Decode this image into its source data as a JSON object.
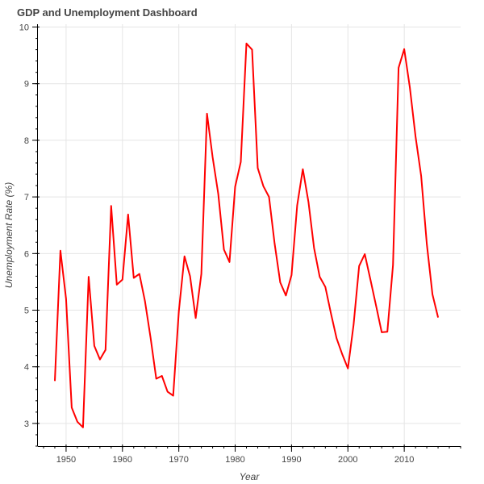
{
  "chart_data": {
    "type": "line",
    "title": "GDP and Unemployment Dashboard",
    "xlabel": "Year",
    "ylabel": "Unemployment Rate (%)",
    "xlim": [
      1945,
      2020
    ],
    "ylim": [
      2.6,
      10.05
    ],
    "x_ticks": [
      1950,
      1960,
      1970,
      1980,
      1990,
      2000,
      2010
    ],
    "y_ticks": [
      3,
      4,
      5,
      6,
      7,
      8,
      9,
      10
    ],
    "x_minor_step": 2,
    "y_minor_step": 0.2,
    "grid": true,
    "legend": "none",
    "series": [
      {
        "color": "#ff0000",
        "x": [
          1948,
          1949,
          1950,
          1951,
          1952,
          1953,
          1954,
          1955,
          1956,
          1957,
          1958,
          1959,
          1960,
          1961,
          1962,
          1963,
          1964,
          1965,
          1966,
          1967,
          1968,
          1969,
          1970,
          1971,
          1972,
          1973,
          1974,
          1975,
          1976,
          1977,
          1978,
          1979,
          1980,
          1981,
          1982,
          1983,
          1984,
          1985,
          1986,
          1987,
          1988,
          1989,
          1990,
          1991,
          1992,
          1993,
          1994,
          1995,
          1996,
          1997,
          1998,
          1999,
          2000,
          2001,
          2002,
          2003,
          2004,
          2005,
          2006,
          2007,
          2008,
          2009,
          2010,
          2011,
          2012,
          2013,
          2014,
          2015,
          2016
        ],
        "values": [
          3.75,
          6.05,
          5.2,
          3.28,
          3.03,
          2.93,
          5.59,
          4.37,
          4.13,
          4.3,
          6.84,
          5.45,
          5.54,
          6.69,
          5.57,
          5.64,
          5.16,
          4.51,
          3.79,
          3.84,
          3.56,
          3.49,
          4.98,
          5.95,
          5.6,
          4.86,
          5.64,
          8.47,
          7.7,
          7.05,
          6.07,
          5.85,
          7.18,
          7.62,
          9.71,
          9.6,
          7.51,
          7.19,
          7.0,
          6.18,
          5.49,
          5.26,
          5.62,
          6.85,
          7.49,
          6.91,
          6.1,
          5.59,
          5.41,
          4.94,
          4.5,
          4.22,
          3.97,
          4.74,
          5.78,
          5.99,
          5.54,
          5.08,
          4.61,
          4.62,
          5.8,
          9.28,
          9.61,
          8.93,
          8.07,
          7.37,
          6.17,
          5.28,
          4.87
        ]
      }
    ]
  }
}
